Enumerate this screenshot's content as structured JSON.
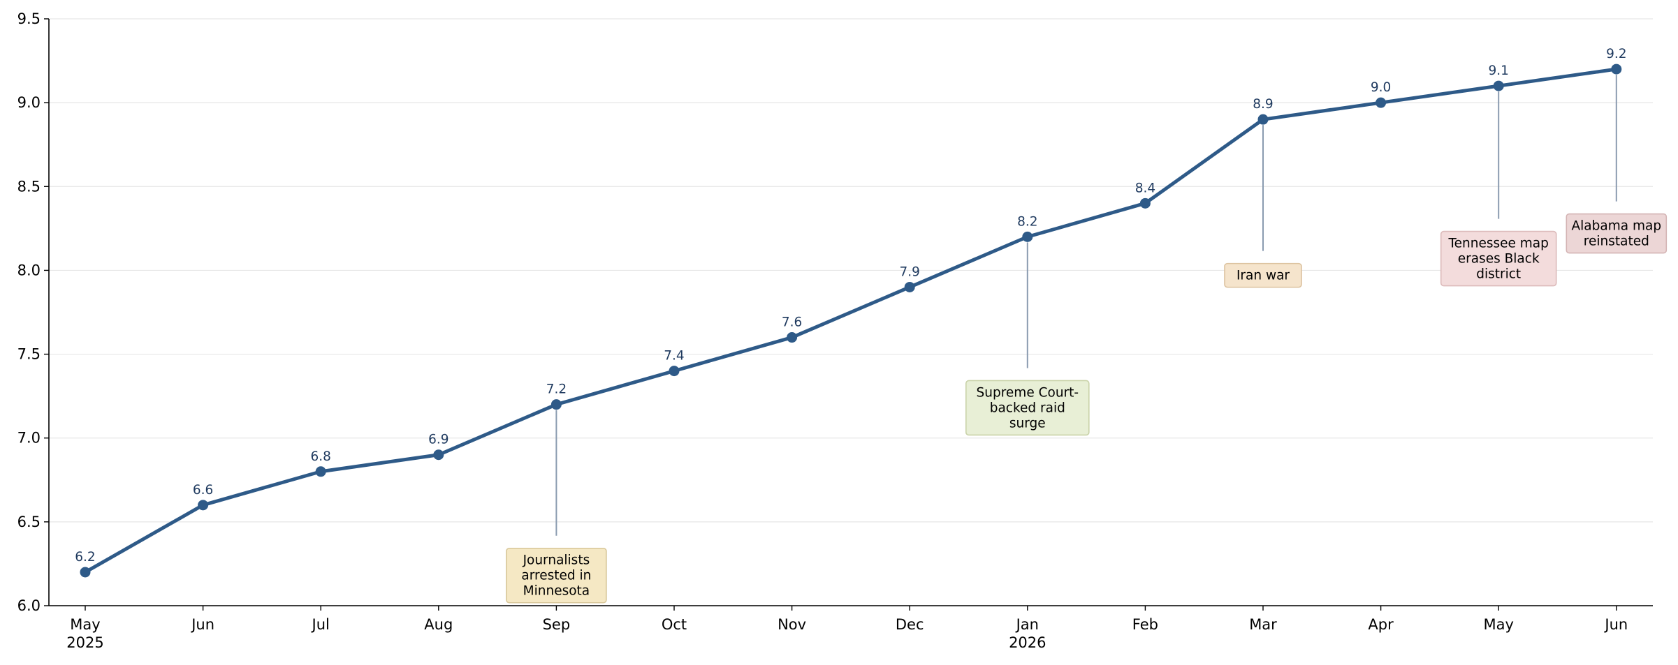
{
  "chart_data": {
    "type": "line",
    "title": "",
    "xlabel": "",
    "ylabel": "",
    "ylim": [
      6.0,
      9.5
    ],
    "yticks": [
      "6.0",
      "6.5",
      "7.0",
      "7.5",
      "8.0",
      "8.5",
      "9.0",
      "9.5"
    ],
    "grid": "horizontal",
    "x": [
      "2025-05",
      "2025-06",
      "2025-07",
      "2025-08",
      "2025-09",
      "2025-10",
      "2025-11",
      "2025-12",
      "2026-01",
      "2026-02",
      "2026-03",
      "2026-04",
      "2026-05",
      "2026-06"
    ],
    "x_tick_labels": [
      [
        "May",
        "2025"
      ],
      [
        "Jun"
      ],
      [
        "Jul"
      ],
      [
        "Aug"
      ],
      [
        "Sep"
      ],
      [
        "Oct"
      ],
      [
        "Nov"
      ],
      [
        "Dec"
      ],
      [
        "Jan",
        "2026"
      ],
      [
        "Feb"
      ],
      [
        "Mar"
      ],
      [
        "Apr"
      ],
      [
        "May"
      ],
      [
        "Jun"
      ]
    ],
    "series": [
      {
        "values": [
          6.2,
          6.6,
          6.8,
          6.9,
          7.2,
          7.4,
          7.6,
          7.9,
          8.2,
          8.4,
          8.9,
          9.0,
          9.1,
          9.2
        ],
        "labels": [
          "6.2",
          "6.6",
          "6.8",
          "6.9",
          "7.2",
          "7.4",
          "7.6",
          "7.9",
          "8.2",
          "8.4",
          "8.9",
          "9.0",
          "9.1",
          "9.2"
        ],
        "color": "#2e5a88"
      }
    ],
    "annotations": [
      {
        "x": "2025-09",
        "text": [
          "Journalists",
          "arrested in",
          "Minnesota"
        ],
        "label_y": 6.18,
        "fill": "#f5e8c4",
        "stroke": "#d8c79a"
      },
      {
        "x": "2026-01",
        "text": [
          "Supreme Court-",
          "backed raid",
          "surge"
        ],
        "label_y": 7.18,
        "fill": "#e8efd6",
        "stroke": "#c9d2a8"
      },
      {
        "x": "2026-03",
        "text": [
          "Iran war"
        ],
        "label_y": 7.97,
        "fill": "#f5e4cc",
        "stroke": "#dcc29f"
      },
      {
        "x": "2026-05",
        "text": [
          "Tennessee map",
          "erases Black",
          "district"
        ],
        "label_y": 8.07,
        "fill": "#f3dcdc",
        "stroke": "#dcbaba"
      },
      {
        "x": "2026-06",
        "text": [
          "Alabama map",
          "reinstated"
        ],
        "label_y": 8.22,
        "fill": "#ecd6d6",
        "stroke": "#d4b4b4"
      }
    ],
    "colors": {
      "line": "#2e5a88",
      "data_label": "#1f3a5f",
      "connector": "#8a9bb0",
      "grid": "#e6e6e6",
      "axis": "#000000"
    }
  }
}
